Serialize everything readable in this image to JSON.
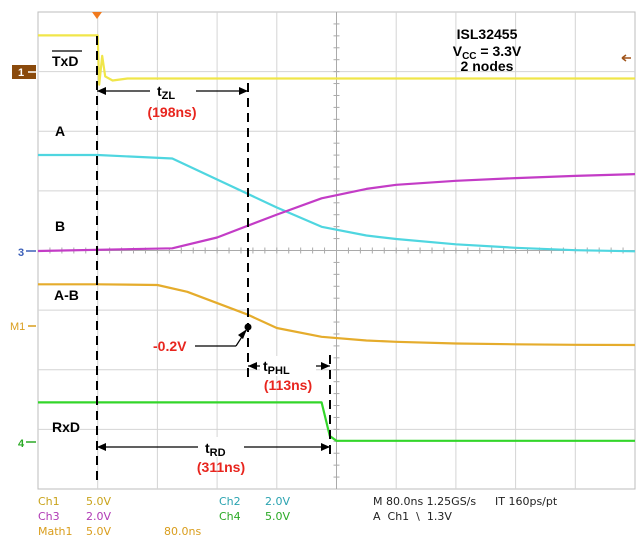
{
  "header": {
    "part": "ISL32455",
    "vcc_main": "V",
    "vcc_sub": "CC",
    "vcc_value": " = 3.3V",
    "nodes": "2 nodes"
  },
  "channel_markers": {
    "ch1": "1",
    "ch3": "3",
    "math": "M1",
    "ch4": "4"
  },
  "colors": {
    "ch1": "#f0e64a",
    "ch2": "#4fd6e0",
    "ch3": "#c33cc6",
    "ch4": "#33d62a",
    "math": "#e5ac2c",
    "annotation": "#e8251e"
  },
  "signal_labels": {
    "txd": "TxD",
    "a": "A",
    "b": "B",
    "a_minus_b": "A-B",
    "rxd": "RxD"
  },
  "annotations": {
    "tzl_main": "t",
    "tzl_sub": "ZL",
    "tzl_value": "(198ns)",
    "threshold": "-0.2V",
    "tphl_main": "t",
    "tphl_sub": "PHL",
    "tphl_value": "(113ns)",
    "trd_main": "t",
    "trd_sub": "RD",
    "trd_value": "(311ns)"
  },
  "footer": {
    "ch1_name": "Ch1",
    "ch1_scale": "5.0V",
    "ch2_name": "Ch2",
    "ch2_scale": "2.0V",
    "ch3_name": "Ch3",
    "ch3_scale": "2.0V",
    "ch4_name": "Ch4",
    "ch4_scale": "5.0V",
    "math_name": "Math1",
    "math_scale": "5.0V",
    "math_time": "80.0ns",
    "timebase": "M 80.0ns 1.25GS/s",
    "sample_interval": "IT 160ps/pt",
    "trigger": "A  Ch1  \\  1.3V"
  },
  "chart_data": {
    "type": "line",
    "time_unit": "ns",
    "time_per_div": 80,
    "divisions_x": 10,
    "divisions_y": 8,
    "x_range": [
      -80,
      720
    ],
    "grid": true,
    "series": [
      {
        "name": "TxD",
        "channel": "Ch1",
        "x": [
          -80,
          0,
          2,
          6,
          10,
          20,
          40,
          720
        ],
        "y": [
          0.6,
          0.6,
          -0.6,
          0.1,
          -0.4,
          -0.5,
          -0.45,
          -0.45
        ]
      },
      {
        "name": "A",
        "channel": "Ch2",
        "x": [
          -80,
          0,
          100,
          160,
          240,
          300,
          360,
          400,
          480,
          560,
          640,
          720
        ],
        "y": [
          2.6,
          2.6,
          2.5,
          1.9,
          1.1,
          0.55,
          0.3,
          0.2,
          0.05,
          -0.05,
          -0.12,
          -0.15
        ]
      },
      {
        "name": "B",
        "channel": "Ch3",
        "x": [
          -80,
          100,
          160,
          240,
          300,
          360,
          400,
          480,
          560,
          640,
          720
        ],
        "y": [
          0.0,
          0.1,
          0.5,
          1.35,
          1.95,
          2.3,
          2.45,
          2.6,
          2.7,
          2.78,
          2.85
        ]
      },
      {
        "name": "A-B",
        "channel": "Math1",
        "x": [
          -80,
          0,
          80,
          120,
          200,
          240,
          300,
          360,
          400,
          480,
          560,
          640,
          720
        ],
        "y": [
          1.75,
          1.75,
          1.72,
          1.45,
          0.55,
          0.0,
          -0.35,
          -0.5,
          -0.55,
          -0.62,
          -0.65,
          -0.67,
          -0.68
        ]
      },
      {
        "name": "RxD",
        "channel": "Ch4",
        "x": [
          -80,
          0,
          300,
          311,
          320,
          720
        ],
        "y": [
          3.3,
          3.3,
          3.3,
          0.5,
          0.1,
          0.1
        ]
      }
    ],
    "measurements": [
      {
        "name": "tZL",
        "value": 198,
        "unit": "ns"
      },
      {
        "name": "tPHL",
        "value": 113,
        "unit": "ns"
      },
      {
        "name": "tRD",
        "value": 311,
        "unit": "ns"
      },
      {
        "name": "threshold",
        "value": -0.2,
        "unit": "V"
      }
    ]
  }
}
